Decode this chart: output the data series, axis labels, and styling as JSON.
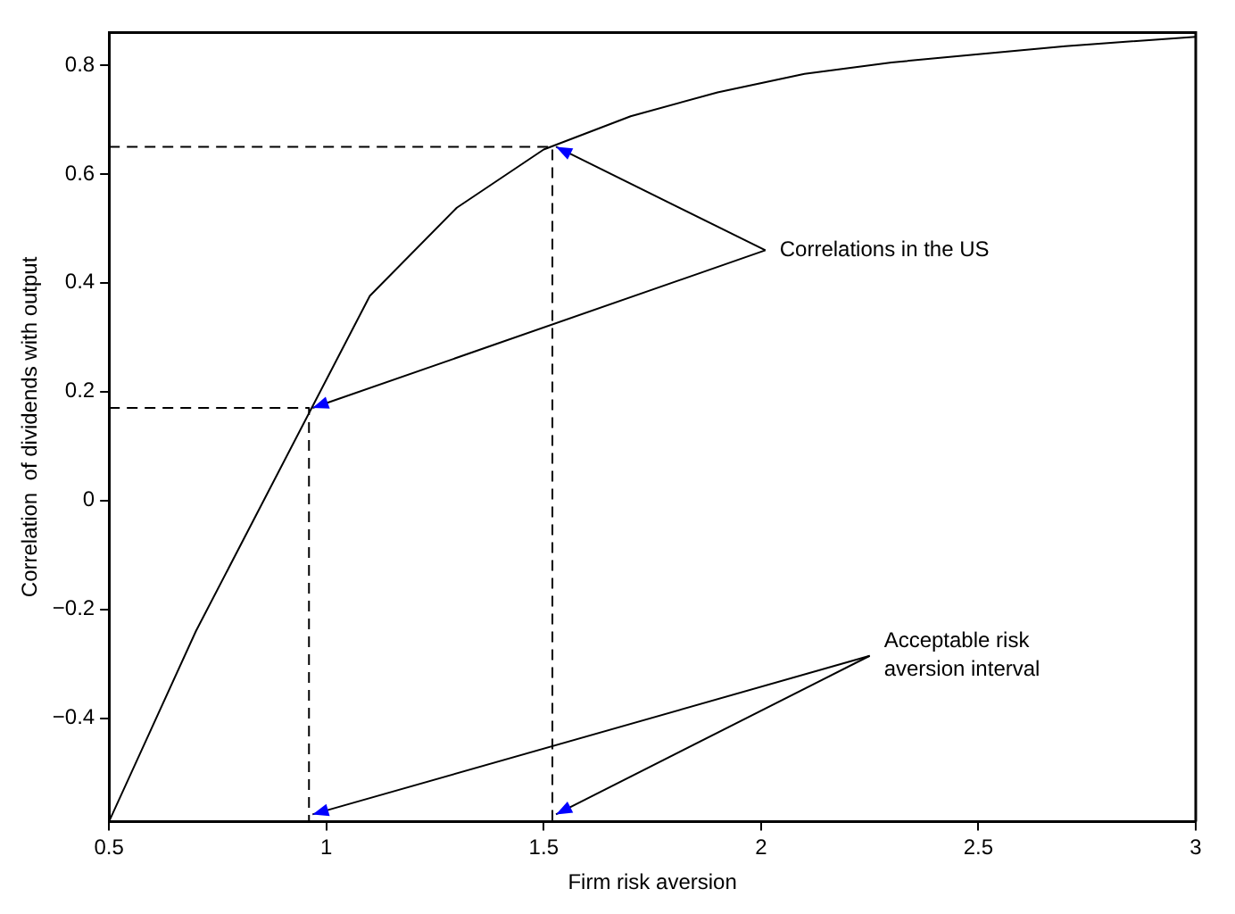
{
  "chart_data": {
    "type": "line",
    "xlabel": "Firm risk aversion",
    "ylabel": "Correlation  of dividends with output",
    "xlim": [
      0.5,
      3
    ],
    "ylim": [
      -0.59,
      0.86
    ],
    "xticks": [
      0.5,
      1,
      1.5,
      2,
      2.5,
      3
    ],
    "yticks": [
      {
        "value": -0.4,
        "label": "−0.4"
      },
      {
        "value": -0.2,
        "label": "−0.2"
      },
      0,
      0.2,
      0.4,
      0.6,
      0.8
    ],
    "grid": false,
    "legend": false,
    "marker": "none",
    "series": [
      {
        "color": "#000000",
        "line_style": "solid",
        "x": [
          0.5,
          0.7,
          1.1,
          1.3,
          1.5,
          1.7,
          1.9,
          2.1,
          2.3,
          2.5,
          2.7,
          3.0
        ],
        "values": [
          -0.59,
          -0.24,
          0.376,
          0.538,
          0.645,
          0.706,
          0.75,
          0.784,
          0.805,
          0.82,
          0.835,
          0.852
        ]
      },
      {
        "color": "#000000",
        "line_style": "dashed",
        "x": [
          0.5,
          0.96,
          0.96
        ],
        "values": [
          0.17,
          0.17,
          -0.59
        ]
      },
      {
        "color": "#000000",
        "line_style": "dashed",
        "x": [
          0.5,
          1.52,
          1.52
        ],
        "values": [
          0.65,
          0.65,
          -0.59
        ]
      }
    ],
    "annotations": [
      {
        "text": "Correlations in the US",
        "x": 0.96,
        "y": 0.17
      },
      {
        "text": "Acceptable risk\naversion interval",
        "x": 0.96,
        "y": -0.59
      }
    ]
  }
}
